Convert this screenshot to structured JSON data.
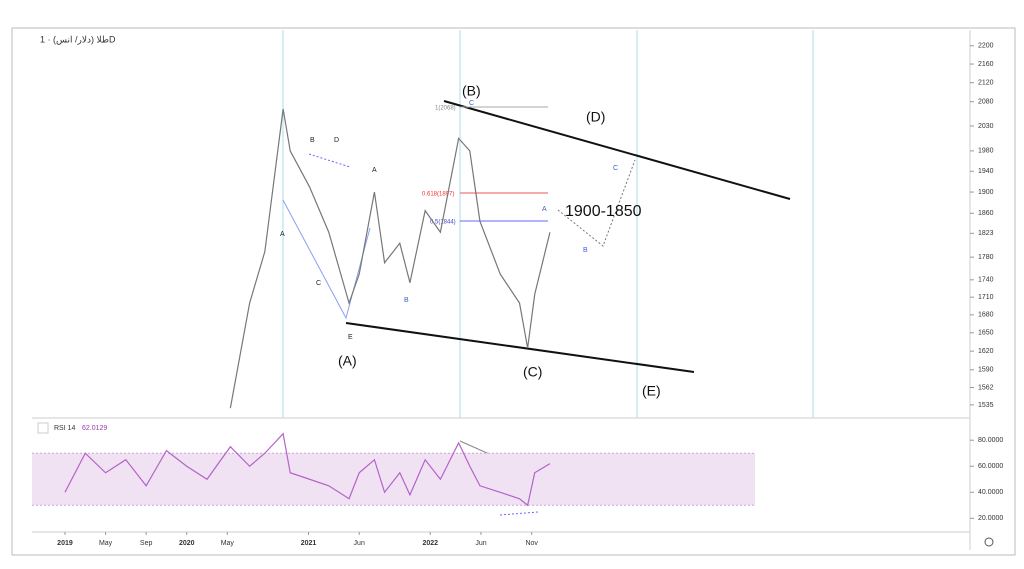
{
  "chart_data": [
    {
      "type": "line",
      "title": "طلا (دلار/ انس) · 1D",
      "log_scale": true,
      "color": "#777777",
      "x": [
        16.3,
        18.2,
        19.7,
        21.5,
        22.2,
        24.1,
        26,
        28,
        29,
        30.5,
        31.5,
        33,
        34,
        35.5,
        37,
        38.8,
        39.9,
        40.9,
        42.9,
        44.8,
        45.6,
        46.3,
        47.8
      ],
      "values": [
        1530,
        1700,
        1790,
        2065,
        1980,
        1910,
        1825,
        1700,
        1750,
        1900,
        1770,
        1805,
        1735,
        1865,
        1825,
        2005,
        1980,
        1845,
        1750,
        1700,
        1625,
        1715,
        1825
      ],
      "xlim": [
        -3.25,
        89.2
      ],
      "xticks": [
        {
          "value": 0,
          "label": "2019"
        },
        {
          "value": 4,
          "label": "May"
        },
        {
          "value": 8,
          "label": "Sep"
        },
        {
          "value": 12,
          "label": "2020"
        },
        {
          "value": 16,
          "label": "May"
        },
        {
          "value": 24,
          "label": "2021"
        },
        {
          "value": 29,
          "label": "Jun"
        },
        {
          "value": 36,
          "label": "2022"
        },
        {
          "value": 41,
          "label": "Jun"
        },
        {
          "value": 46,
          "label": "Nov"
        }
      ],
      "ylim": [
        1515,
        2235
      ],
      "yticks": [
        2200,
        2160,
        2120,
        2080,
        2030,
        1980,
        1940,
        1900,
        1860,
        1823,
        1780,
        1740,
        1710,
        1680,
        1650,
        1620,
        1590,
        1562,
        1535
      ],
      "annotations": [
        "(A)",
        "(B)",
        "(C)",
        "(D)",
        "(E)",
        "1900-1850",
        "B",
        "D",
        "A",
        "C",
        "E",
        "B",
        "A",
        "C",
        "A",
        "B",
        "C",
        "1(2068)",
        "0.618(1897)",
        "0.5(1844)"
      ]
    },
    {
      "type": "line",
      "title": "RSI 14",
      "last_value": 62.0129,
      "color": "#b463c8",
      "x": [
        0,
        2,
        4,
        6,
        8,
        10,
        12,
        14,
        16.3,
        18.2,
        19.7,
        21.5,
        22.2,
        24.1,
        26,
        28,
        29,
        30.5,
        31.5,
        33,
        34,
        35.5,
        37,
        38.8,
        39.9,
        40.9,
        42.9,
        44.8,
        45.6,
        46.3,
        47.8
      ],
      "values": [
        40,
        70,
        55,
        65,
        45,
        72,
        60,
        50,
        75,
        60,
        70,
        85,
        55,
        50,
        45,
        35,
        55,
        65,
        40,
        55,
        38,
        65,
        50,
        78,
        60,
        45,
        40,
        35,
        30,
        55,
        62
      ],
      "band": [
        30,
        70
      ],
      "ylim": [
        11,
        94
      ],
      "yticks": [
        {
          "value": 80,
          "label": "80.0000"
        },
        {
          "value": 60,
          "label": "60.0000"
        },
        {
          "value": 40,
          "label": "40.0000"
        },
        {
          "value": 20,
          "label": "20.0000"
        }
      ]
    }
  ]
}
